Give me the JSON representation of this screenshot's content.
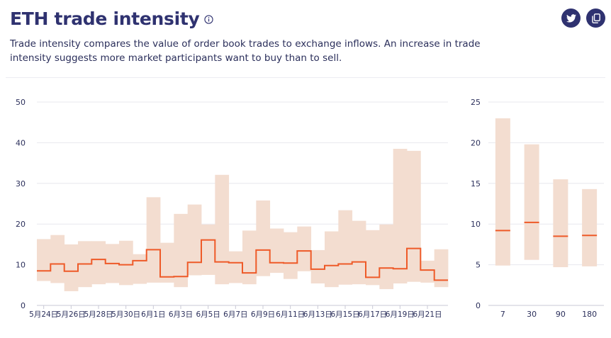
{
  "header": {
    "title": "ETH trade intensity",
    "subtitle": "Trade intensity compares the value of order book trades to exchange inflows. An increase in trade intensity suggests more market participants want to buy than to sell."
  },
  "icons": {
    "info": "info-icon",
    "twitter": "twitter-icon",
    "copy": "copy-icon"
  },
  "colors": {
    "band": "#f3ddd0",
    "line": "#ee5a28",
    "title": "#2f3270",
    "grid": "#e8e8ee",
    "axis": "#2b2f5b"
  },
  "chart_data": [
    {
      "type": "line",
      "x": [
        "5月24日",
        "5月25日",
        "5月26日",
        "5月27日",
        "5月28日",
        "5月29日",
        "5月30日",
        "5月31日",
        "6月1日",
        "6月2日",
        "6月3日",
        "6月4日",
        "6月5日",
        "6月6日",
        "6月7日",
        "6月8日",
        "6月9日",
        "6月10日",
        "6月11日",
        "6月12日",
        "6月13日",
        "6月14日",
        "6月15日",
        "6月16日",
        "6月17日",
        "6月18日",
        "6月19日",
        "6月20日",
        "6月21日",
        "6月22日"
      ],
      "tick_labels": [
        "5月24日",
        "5月26日",
        "5月28日",
        "5月30日",
        "6月1日",
        "6月3日",
        "6月5日",
        "6月7日",
        "6月9日",
        "6月11日",
        "6月13日",
        "6月15日",
        "6月17日",
        "6月19日",
        "6月21日"
      ],
      "series": [
        {
          "values": [
            8.5,
            10.2,
            8.4,
            10.2,
            11.3,
            10.3,
            10.0,
            11.0,
            13.7,
            7.0,
            7.1,
            10.6,
            16.1,
            10.7,
            10.5,
            8.0,
            13.6,
            10.5,
            10.4,
            13.4,
            8.9,
            9.8,
            10.2,
            10.7,
            6.9,
            9.2,
            9.0,
            14.0,
            8.7,
            6.2
          ]
        }
      ],
      "band_low": [
        6.0,
        5.5,
        3.5,
        4.5,
        5.2,
        5.5,
        5.0,
        5.3,
        5.6,
        5.6,
        4.5,
        7.4,
        7.5,
        5.2,
        5.5,
        5.2,
        7.2,
        8.0,
        6.5,
        8.4,
        5.4,
        4.5,
        5.1,
        5.2,
        5.0,
        4.0,
        5.4,
        5.8,
        5.6,
        4.5
      ],
      "band_high": [
        16.3,
        17.3,
        15.0,
        15.8,
        15.8,
        15.1,
        15.9,
        12.6,
        26.6,
        15.4,
        22.5,
        24.8,
        19.9,
        32.1,
        13.3,
        18.4,
        25.8,
        18.9,
        18.0,
        19.4,
        13.6,
        18.2,
        23.4,
        20.8,
        18.5,
        19.9,
        38.5,
        38.0,
        11.0,
        13.8
      ],
      "ylim": [
        0,
        50
      ],
      "yticks": [
        0,
        10,
        20,
        30,
        40,
        50
      ],
      "grid": true
    },
    {
      "type": "bar",
      "categories": [
        "7",
        "30",
        "90",
        "180"
      ],
      "values": [
        9.2,
        10.2,
        8.5,
        8.6
      ],
      "low": [
        4.9,
        5.6,
        4.7,
        4.8
      ],
      "high": [
        23.0,
        19.8,
        15.5,
        14.3
      ],
      "ylim": [
        0,
        25
      ],
      "yticks": [
        0,
        5,
        10,
        15,
        20,
        25
      ],
      "grid": true
    }
  ]
}
